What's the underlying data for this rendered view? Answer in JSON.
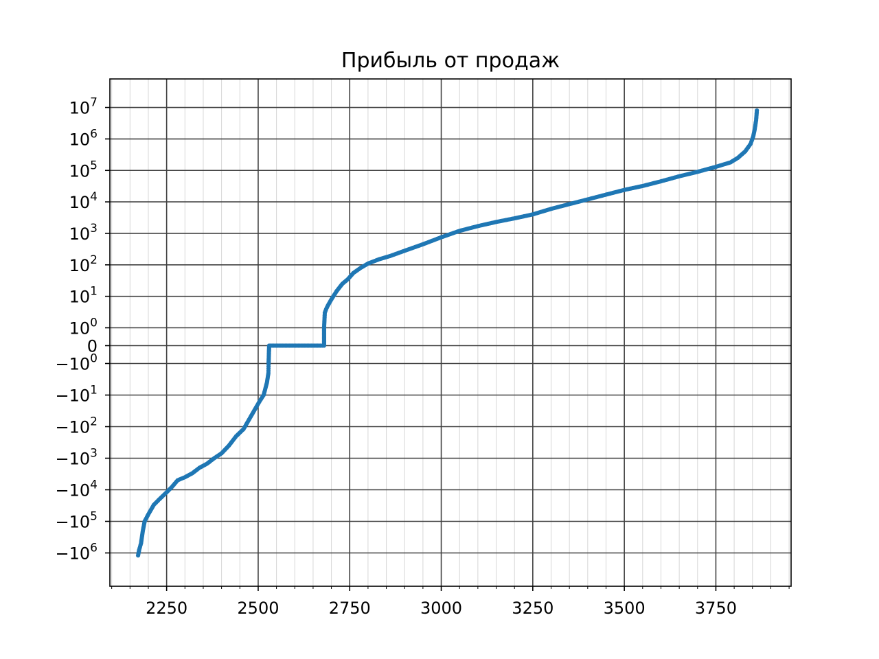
{
  "chart_data": {
    "type": "scatter",
    "title": "Прибыль от продаж",
    "xlabel": "",
    "ylabel": "",
    "xlim": [
      2095,
      3960
    ],
    "y_scale": "symlog",
    "y_linthresh": 1,
    "ylim": [
      -4000000,
      45000000
    ],
    "grid": {
      "major": true,
      "minor": true
    },
    "marker_color": "#1f77b4",
    "x_ticks": [
      2250,
      2500,
      2750,
      3000,
      3250,
      3500,
      3750
    ],
    "x_tick_labels": [
      "2250",
      "2500",
      "2750",
      "3000",
      "3250",
      "3500",
      "3750"
    ],
    "y_ticks": [
      {
        "value": 10000000,
        "base": "10",
        "exp": "7"
      },
      {
        "value": 1000000,
        "base": "10",
        "exp": "6"
      },
      {
        "value": 100000,
        "base": "10",
        "exp": "5"
      },
      {
        "value": 10000,
        "base": "10",
        "exp": "4"
      },
      {
        "value": 1000,
        "base": "10",
        "exp": "3"
      },
      {
        "value": 100,
        "base": "10",
        "exp": "2"
      },
      {
        "value": 10,
        "base": "10",
        "exp": "1"
      },
      {
        "value": 1,
        "base": "10",
        "exp": "0"
      },
      {
        "value": 0,
        "base": "0",
        "exp": ""
      },
      {
        "value": -1,
        "base": "−10",
        "exp": "0"
      },
      {
        "value": -10,
        "base": "−10",
        "exp": "1"
      },
      {
        "value": -100,
        "base": "−10",
        "exp": "2"
      },
      {
        "value": -1000,
        "base": "−10",
        "exp": "3"
      },
      {
        "value": -10000,
        "base": "−10",
        "exp": "4"
      },
      {
        "value": -100000,
        "base": "−10",
        "exp": "5"
      },
      {
        "value": -1000000,
        "base": "−10",
        "exp": "6"
      }
    ],
    "series": [
      {
        "points": [
          [
            2172,
            -1200000
          ],
          [
            2175,
            -800000
          ],
          [
            2180,
            -500000
          ],
          [
            2185,
            -200000
          ],
          [
            2190,
            -100000
          ],
          [
            2200,
            -60000
          ],
          [
            2215,
            -30000
          ],
          [
            2230,
            -20000
          ],
          [
            2250,
            -12000
          ],
          [
            2265,
            -8000
          ],
          [
            2280,
            -5000
          ],
          [
            2300,
            -4000
          ],
          [
            2320,
            -3000
          ],
          [
            2340,
            -2000
          ],
          [
            2360,
            -1500
          ],
          [
            2380,
            -1000
          ],
          [
            2400,
            -700
          ],
          [
            2420,
            -400
          ],
          [
            2440,
            -200
          ],
          [
            2460,
            -120
          ],
          [
            2475,
            -60
          ],
          [
            2490,
            -30
          ],
          [
            2505,
            -15
          ],
          [
            2515,
            -10
          ],
          [
            2520,
            -6
          ],
          [
            2524,
            -4
          ],
          [
            2528,
            -2
          ],
          [
            2530,
            0
          ],
          [
            2550,
            0
          ],
          [
            2570,
            0
          ],
          [
            2590,
            0
          ],
          [
            2610,
            0
          ],
          [
            2630,
            0
          ],
          [
            2650,
            0
          ],
          [
            2670,
            0
          ],
          [
            2680,
            0
          ],
          [
            2680,
            1
          ],
          [
            2682,
            3
          ],
          [
            2686,
            4
          ],
          [
            2690,
            5
          ],
          [
            2700,
            8
          ],
          [
            2715,
            15
          ],
          [
            2730,
            25
          ],
          [
            2745,
            35
          ],
          [
            2760,
            55
          ],
          [
            2780,
            80
          ],
          [
            2800,
            110
          ],
          [
            2830,
            150
          ],
          [
            2860,
            190
          ],
          [
            2900,
            280
          ],
          [
            2950,
            450
          ],
          [
            3000,
            750
          ],
          [
            3050,
            1200
          ],
          [
            3100,
            1700
          ],
          [
            3150,
            2300
          ],
          [
            3200,
            3000
          ],
          [
            3250,
            4000
          ],
          [
            3300,
            6000
          ],
          [
            3350,
            8500
          ],
          [
            3400,
            12000
          ],
          [
            3450,
            17000
          ],
          [
            3500,
            24000
          ],
          [
            3550,
            32000
          ],
          [
            3600,
            45000
          ],
          [
            3650,
            65000
          ],
          [
            3700,
            90000
          ],
          [
            3750,
            130000
          ],
          [
            3790,
            180000
          ],
          [
            3810,
            250000
          ],
          [
            3830,
            400000
          ],
          [
            3845,
            700000
          ],
          [
            3852,
            1200000
          ],
          [
            3856,
            2000000
          ],
          [
            3860,
            4000000
          ],
          [
            3862,
            8000000
          ]
        ]
      }
    ]
  }
}
